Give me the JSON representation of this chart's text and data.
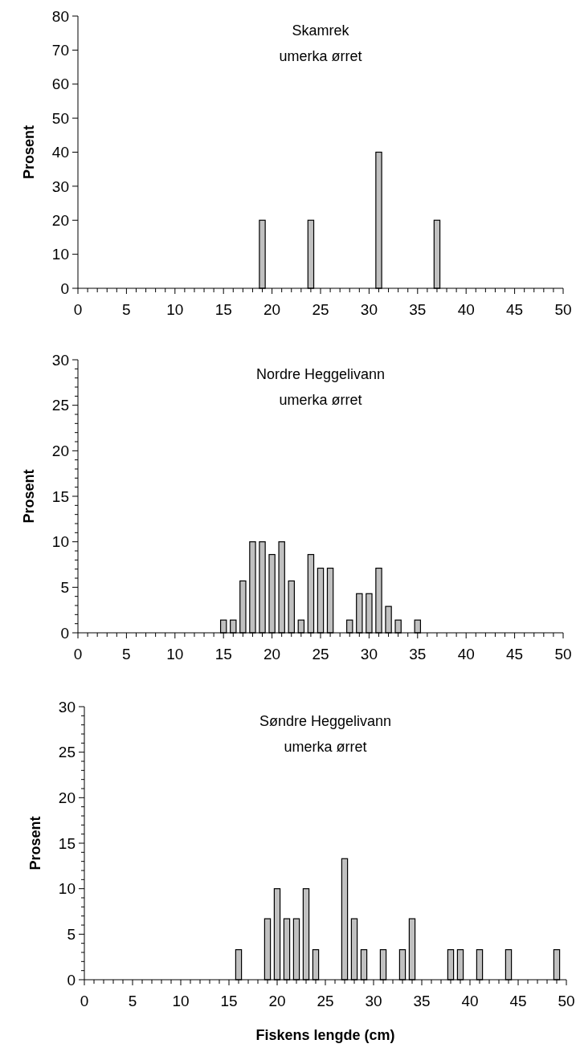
{
  "chart_data": [
    {
      "type": "bar",
      "title": "Skamrek\numerka ørret",
      "ylabel": "Prosent",
      "x": [
        19,
        24,
        31,
        37
      ],
      "values": [
        20,
        20,
        40,
        20
      ],
      "color": "#c0c0c0",
      "xlim": [
        0,
        50
      ],
      "ylim": [
        0,
        80
      ],
      "yticks": [
        0,
        10,
        20,
        30,
        40,
        50,
        60,
        70,
        80
      ],
      "xticks": [
        0,
        {
          "value": 1,
          "label": null
        },
        {
          "value": 2,
          "label": null
        },
        {
          "value": 3,
          "label": null
        },
        {
          "value": 4,
          "label": null
        },
        5,
        {
          "value": 6,
          "label": null
        },
        {
          "value": 7,
          "label": null
        },
        {
          "value": 8,
          "label": null
        },
        {
          "value": 9,
          "label": null
        },
        10,
        {
          "value": 11,
          "label": null
        },
        {
          "value": 12,
          "label": null
        },
        {
          "value": 13,
          "label": null
        },
        {
          "value": 14,
          "label": null
        },
        15,
        {
          "value": 16,
          "label": null
        },
        {
          "value": 17,
          "label": null
        },
        {
          "value": 18,
          "label": null
        },
        {
          "value": 19,
          "label": null
        },
        20,
        {
          "value": 21,
          "label": null
        },
        {
          "value": 22,
          "label": null
        },
        {
          "value": 23,
          "label": null
        },
        {
          "value": 24,
          "label": null
        },
        25,
        {
          "value": 26,
          "label": null
        },
        {
          "value": 27,
          "label": null
        },
        {
          "value": 28,
          "label": null
        },
        {
          "value": 29,
          "label": null
        },
        30,
        {
          "value": 31,
          "label": null
        },
        {
          "value": 32,
          "label": null
        },
        {
          "value": 33,
          "label": null
        },
        {
          "value": 34,
          "label": null
        },
        35,
        {
          "value": 36,
          "label": null
        },
        {
          "value": 37,
          "label": null
        },
        {
          "value": 38,
          "label": null
        },
        {
          "value": 39,
          "label": null
        },
        40,
        {
          "value": 41,
          "label": null
        },
        {
          "value": 42,
          "label": null
        },
        {
          "value": 43,
          "label": null
        },
        {
          "value": 44,
          "label": null
        },
        45,
        {
          "value": 46,
          "label": null
        },
        {
          "value": 47,
          "label": null
        },
        {
          "value": 48,
          "label": null
        },
        {
          "value": 49,
          "label": null
        },
        50
      ]
    },
    {
      "type": "bar",
      "title": "Nordre Heggelivann\numerka ørret",
      "ylabel": "Prosent",
      "x": [
        15,
        16,
        17,
        18,
        19,
        20,
        21,
        22,
        23,
        24,
        25,
        26,
        28,
        29,
        30,
        31,
        32,
        33,
        35
      ],
      "values": [
        1.4,
        1.4,
        5.7,
        10,
        10,
        8.6,
        10,
        5.7,
        1.4,
        8.6,
        7.1,
        7.1,
        1.4,
        4.3,
        4.3,
        7.1,
        2.9,
        1.4,
        1.4
      ],
      "color": "#c0c0c0",
      "xlim": [
        0,
        50
      ],
      "ylim": [
        0,
        30
      ],
      "yticks": [
        0,
        {
          "value": 1,
          "label": null
        },
        {
          "value": 2,
          "label": null
        },
        {
          "value": 3,
          "label": null
        },
        {
          "value": 4,
          "label": null
        },
        5,
        {
          "value": 6,
          "label": null
        },
        {
          "value": 7,
          "label": null
        },
        {
          "value": 8,
          "label": null
        },
        {
          "value": 9,
          "label": null
        },
        10,
        {
          "value": 11,
          "label": null
        },
        {
          "value": 12,
          "label": null
        },
        {
          "value": 13,
          "label": null
        },
        {
          "value": 14,
          "label": null
        },
        15,
        {
          "value": 16,
          "label": null
        },
        {
          "value": 17,
          "label": null
        },
        {
          "value": 18,
          "label": null
        },
        {
          "value": 19,
          "label": null
        },
        20,
        {
          "value": 21,
          "label": null
        },
        {
          "value": 22,
          "label": null
        },
        {
          "value": 23,
          "label": null
        },
        {
          "value": 24,
          "label": null
        },
        25,
        {
          "value": 26,
          "label": null
        },
        {
          "value": 27,
          "label": null
        },
        {
          "value": 28,
          "label": null
        },
        {
          "value": 29,
          "label": null
        },
        30
      ],
      "xticks": [
        0,
        {
          "value": 1,
          "label": null
        },
        {
          "value": 2,
          "label": null
        },
        {
          "value": 3,
          "label": null
        },
        {
          "value": 4,
          "label": null
        },
        5,
        {
          "value": 6,
          "label": null
        },
        {
          "value": 7,
          "label": null
        },
        {
          "value": 8,
          "label": null
        },
        {
          "value": 9,
          "label": null
        },
        10,
        {
          "value": 11,
          "label": null
        },
        {
          "value": 12,
          "label": null
        },
        {
          "value": 13,
          "label": null
        },
        {
          "value": 14,
          "label": null
        },
        15,
        {
          "value": 16,
          "label": null
        },
        {
          "value": 17,
          "label": null
        },
        {
          "value": 18,
          "label": null
        },
        {
          "value": 19,
          "label": null
        },
        20,
        {
          "value": 21,
          "label": null
        },
        {
          "value": 22,
          "label": null
        },
        {
          "value": 23,
          "label": null
        },
        {
          "value": 24,
          "label": null
        },
        25,
        {
          "value": 26,
          "label": null
        },
        {
          "value": 27,
          "label": null
        },
        {
          "value": 28,
          "label": null
        },
        {
          "value": 29,
          "label": null
        },
        30,
        {
          "value": 31,
          "label": null
        },
        {
          "value": 32,
          "label": null
        },
        {
          "value": 33,
          "label": null
        },
        {
          "value": 34,
          "label": null
        },
        35,
        {
          "value": 36,
          "label": null
        },
        {
          "value": 37,
          "label": null
        },
        {
          "value": 38,
          "label": null
        },
        {
          "value": 39,
          "label": null
        },
        40,
        {
          "value": 41,
          "label": null
        },
        {
          "value": 42,
          "label": null
        },
        {
          "value": 43,
          "label": null
        },
        {
          "value": 44,
          "label": null
        },
        45,
        {
          "value": 46,
          "label": null
        },
        {
          "value": 47,
          "label": null
        },
        {
          "value": 48,
          "label": null
        },
        {
          "value": 49,
          "label": null
        },
        50
      ]
    },
    {
      "type": "bar",
      "title": "Søndre Heggelivann\numerka ørret",
      "ylabel": "Prosent",
      "xlabel": "Fiskens lengde (cm)",
      "x": [
        16,
        19,
        20,
        21,
        22,
        23,
        24,
        27,
        28,
        29,
        31,
        33,
        34,
        38,
        39,
        41,
        44,
        49
      ],
      "values": [
        3.3,
        6.7,
        10,
        6.7,
        6.7,
        10,
        3.3,
        13.3,
        6.7,
        3.3,
        3.3,
        3.3,
        6.7,
        3.3,
        3.3,
        3.3,
        3.3,
        3.3
      ],
      "color": "#c0c0c0",
      "xlim": [
        0,
        50
      ],
      "ylim": [
        0,
        30
      ],
      "yticks": [
        0,
        {
          "value": 1,
          "label": null
        },
        {
          "value": 2,
          "label": null
        },
        {
          "value": 3,
          "label": null
        },
        {
          "value": 4,
          "label": null
        },
        5,
        {
          "value": 6,
          "label": null
        },
        {
          "value": 7,
          "label": null
        },
        {
          "value": 8,
          "label": null
        },
        {
          "value": 9,
          "label": null
        },
        10,
        {
          "value": 11,
          "label": null
        },
        {
          "value": 12,
          "label": null
        },
        {
          "value": 13,
          "label": null
        },
        {
          "value": 14,
          "label": null
        },
        15,
        {
          "value": 16,
          "label": null
        },
        {
          "value": 17,
          "label": null
        },
        {
          "value": 18,
          "label": null
        },
        {
          "value": 19,
          "label": null
        },
        20,
        {
          "value": 21,
          "label": null
        },
        {
          "value": 22,
          "label": null
        },
        {
          "value": 23,
          "label": null
        },
        {
          "value": 24,
          "label": null
        },
        25,
        {
          "value": 26,
          "label": null
        },
        {
          "value": 27,
          "label": null
        },
        {
          "value": 28,
          "label": null
        },
        {
          "value": 29,
          "label": null
        },
        30
      ],
      "xticks": [
        0,
        {
          "value": 1,
          "label": null
        },
        {
          "value": 2,
          "label": null
        },
        {
          "value": 3,
          "label": null
        },
        {
          "value": 4,
          "label": null
        },
        5,
        {
          "value": 6,
          "label": null
        },
        {
          "value": 7,
          "label": null
        },
        {
          "value": 8,
          "label": null
        },
        {
          "value": 9,
          "label": null
        },
        10,
        {
          "value": 11,
          "label": null
        },
        {
          "value": 12,
          "label": null
        },
        {
          "value": 13,
          "label": null
        },
        {
          "value": 14,
          "label": null
        },
        15,
        {
          "value": 16,
          "label": null
        },
        {
          "value": 17,
          "label": null
        },
        {
          "value": 18,
          "label": null
        },
        {
          "value": 19,
          "label": null
        },
        20,
        {
          "value": 21,
          "label": null
        },
        {
          "value": 22,
          "label": null
        },
        {
          "value": 23,
          "label": null
        },
        {
          "value": 24,
          "label": null
        },
        25,
        {
          "value": 26,
          "label": null
        },
        {
          "value": 27,
          "label": null
        },
        {
          "value": 28,
          "label": null
        },
        {
          "value": 29,
          "label": null
        },
        30,
        {
          "value": 31,
          "label": null
        },
        {
          "value": 32,
          "label": null
        },
        {
          "value": 33,
          "label": null
        },
        {
          "value": 34,
          "label": null
        },
        35,
        {
          "value": 36,
          "label": null
        },
        {
          "value": 37,
          "label": null
        },
        {
          "value": 38,
          "label": null
        },
        {
          "value": 39,
          "label": null
        },
        40,
        {
          "value": 41,
          "label": null
        },
        {
          "value": 42,
          "label": null
        },
        {
          "value": 43,
          "label": null
        },
        {
          "value": 44,
          "label": null
        },
        45,
        {
          "value": 46,
          "label": null
        },
        {
          "value": 47,
          "label": null
        },
        {
          "value": 48,
          "label": null
        },
        {
          "value": 49,
          "label": null
        },
        50
      ]
    }
  ]
}
